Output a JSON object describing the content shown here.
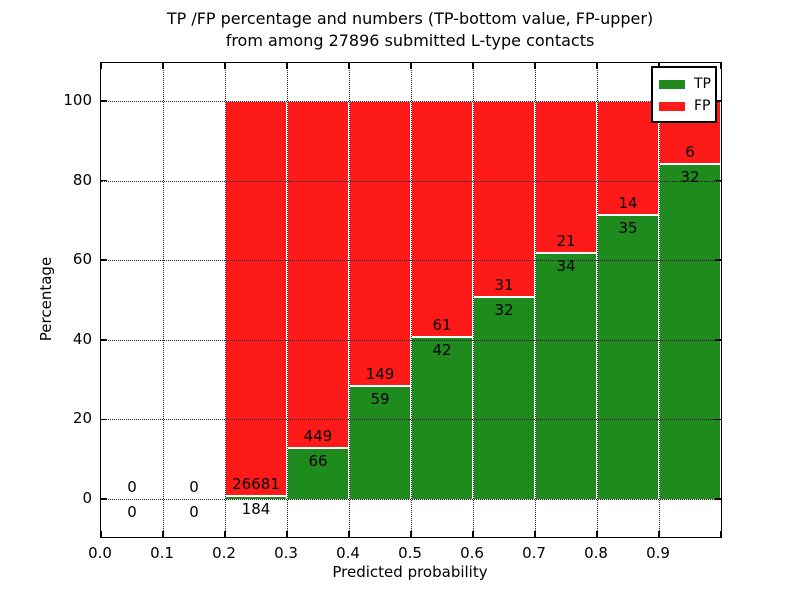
{
  "chart_data": {
    "type": "bar",
    "stacked": true,
    "title_line1": "TP /FP percentage and numbers (TP-bottom value, FP-upper)",
    "title_line2": "from among 27896 submitted L-type contacts",
    "xlabel": "Predicted probability",
    "ylabel": "Percentage",
    "xlim": [
      0.0,
      1.0
    ],
    "ylim": [
      -9.5,
      109.5
    ],
    "grid": true,
    "x_ticks": [
      0.0,
      0.1,
      0.2,
      0.3,
      0.4,
      0.5,
      0.6,
      0.7,
      0.8,
      0.9
    ],
    "x_tick_labels": [
      "0.0",
      "0.1",
      "0.2",
      "0.3",
      "0.4",
      "0.5",
      "0.6",
      "0.7",
      "0.8",
      "0.9"
    ],
    "y_ticks": [
      0,
      20,
      40,
      60,
      80,
      100
    ],
    "y_tick_labels": [
      "0",
      "20",
      "40",
      "60",
      "80",
      "100"
    ],
    "legend_position": "upper right",
    "legend": [
      {
        "label": "TP",
        "color": "#1f8b1f"
      },
      {
        "label": "FP",
        "color": "#ff1a1a"
      }
    ],
    "bins": [
      {
        "x0": 0.0,
        "x1": 0.1,
        "tp": 0,
        "fp": 0
      },
      {
        "x0": 0.1,
        "x1": 0.2,
        "tp": 0,
        "fp": 0
      },
      {
        "x0": 0.2,
        "x1": 0.3,
        "tp": 184,
        "fp": 26681
      },
      {
        "x0": 0.3,
        "x1": 0.4,
        "tp": 66,
        "fp": 449
      },
      {
        "x0": 0.4,
        "x1": 0.5,
        "tp": 59,
        "fp": 149
      },
      {
        "x0": 0.5,
        "x1": 0.6,
        "tp": 42,
        "fp": 61
      },
      {
        "x0": 0.6,
        "x1": 0.7,
        "tp": 32,
        "fp": 31
      },
      {
        "x0": 0.7,
        "x1": 0.8,
        "tp": 34,
        "fp": 21
      },
      {
        "x0": 0.8,
        "x1": 0.9,
        "tp": 35,
        "fp": 14
      },
      {
        "x0": 0.9,
        "x1": 1.0,
        "tp": 32,
        "fp": 6
      }
    ],
    "total_submitted": "27896"
  },
  "colors": {
    "tp_green": "#1f8b1f",
    "fp_red": "#ff1a1a",
    "grid": "#000000",
    "background": "#ffffff"
  }
}
